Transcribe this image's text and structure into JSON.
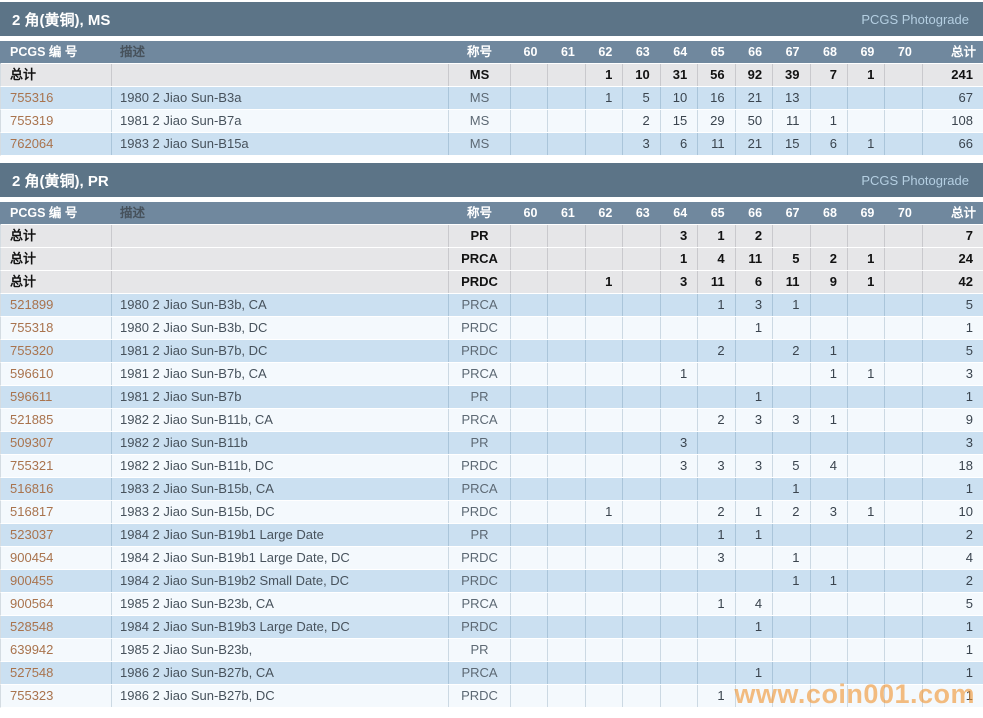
{
  "table_headers": {
    "pcgs_number": "PCGS 编 号",
    "description": "描述",
    "designation": "称号",
    "total": "总计"
  },
  "grade_columns": [
    "60",
    "61",
    "62",
    "63",
    "64",
    "65",
    "66",
    "67",
    "68",
    "69",
    "70"
  ],
  "total_row_label": "总计",
  "watermark": "www.coin001.com",
  "colors": {
    "section_band": "#5c7487",
    "table_header": "#70889e",
    "total_row": "#e6e6e8",
    "row_blue": "#cbe0f1",
    "row_light": "#f4f9fd",
    "pcgs_number_link": "#a9734d",
    "photograde_link": "#b5cfe2",
    "watermark": "#f2932d"
  },
  "sections": [
    {
      "title": "2 角(黄铜), MS",
      "link": "PCGS Photograde",
      "total_rows": [
        {
          "designation": "MS",
          "grades": {
            "62": "1",
            "63": "10",
            "64": "31",
            "65": "56",
            "66": "92",
            "67": "39",
            "68": "7",
            "69": "1"
          },
          "total": "241"
        }
      ],
      "rows": [
        {
          "pcgs_number": "755316",
          "description": "1980 2 Jiao Sun-B3a",
          "designation": "MS",
          "grades": {
            "62": "1",
            "63": "5",
            "64": "10",
            "65": "16",
            "66": "21",
            "67": "13"
          },
          "total": "67"
        },
        {
          "pcgs_number": "755319",
          "description": "1981 2 Jiao Sun-B7a",
          "designation": "MS",
          "grades": {
            "63": "2",
            "64": "15",
            "65": "29",
            "66": "50",
            "67": "11",
            "68": "1"
          },
          "total": "108"
        },
        {
          "pcgs_number": "762064",
          "description": "1983 2 Jiao Sun-B15a",
          "designation": "MS",
          "grades": {
            "63": "3",
            "64": "6",
            "65": "11",
            "66": "21",
            "67": "15",
            "68": "6",
            "69": "1"
          },
          "total": "66"
        }
      ]
    },
    {
      "title": "2 角(黄铜), PR",
      "link": "PCGS Photograde",
      "total_rows": [
        {
          "designation": "PR",
          "grades": {
            "64": "3",
            "65": "1",
            "66": "2"
          },
          "total": "7"
        },
        {
          "designation": "PRCA",
          "grades": {
            "64": "1",
            "65": "4",
            "66": "11",
            "67": "5",
            "68": "2",
            "69": "1"
          },
          "total": "24"
        },
        {
          "designation": "PRDC",
          "grades": {
            "62": "1",
            "64": "3",
            "65": "11",
            "66": "6",
            "67": "11",
            "68": "9",
            "69": "1"
          },
          "total": "42"
        }
      ],
      "rows": [
        {
          "pcgs_number": "521899",
          "description": "1980 2 Jiao Sun-B3b, CA",
          "designation": "PRCA",
          "grades": {
            "65": "1",
            "66": "3",
            "67": "1"
          },
          "total": "5"
        },
        {
          "pcgs_number": "755318",
          "description": "1980 2 Jiao Sun-B3b, DC",
          "designation": "PRDC",
          "grades": {
            "66": "1"
          },
          "total": "1"
        },
        {
          "pcgs_number": "755320",
          "description": "1981 2 Jiao Sun-B7b, DC",
          "designation": "PRDC",
          "grades": {
            "65": "2",
            "67": "2",
            "68": "1"
          },
          "total": "5"
        },
        {
          "pcgs_number": "596610",
          "description": "1981 2 Jiao Sun-B7b, CA",
          "designation": "PRCA",
          "grades": {
            "64": "1",
            "68": "1",
            "69": "1"
          },
          "total": "3"
        },
        {
          "pcgs_number": "596611",
          "description": "1981 2 Jiao Sun-B7b",
          "designation": "PR",
          "grades": {
            "66": "1"
          },
          "total": "1"
        },
        {
          "pcgs_number": "521885",
          "description": "1982 2 Jiao Sun-B11b, CA",
          "designation": "PRCA",
          "grades": {
            "65": "2",
            "66": "3",
            "67": "3",
            "68": "1"
          },
          "total": "9"
        },
        {
          "pcgs_number": "509307",
          "description": "1982 2 Jiao Sun-B11b",
          "designation": "PR",
          "grades": {
            "64": "3"
          },
          "total": "3"
        },
        {
          "pcgs_number": "755321",
          "description": "1982 2 Jiao Sun-B11b, DC",
          "designation": "PRDC",
          "grades": {
            "64": "3",
            "65": "3",
            "66": "3",
            "67": "5",
            "68": "4"
          },
          "total": "18"
        },
        {
          "pcgs_number": "516816",
          "description": "1983 2 Jiao Sun-B15b, CA",
          "designation": "PRCA",
          "grades": {
            "67": "1"
          },
          "total": "1"
        },
        {
          "pcgs_number": "516817",
          "description": "1983 2 Jiao Sun-B15b, DC",
          "designation": "PRDC",
          "grades": {
            "62": "1",
            "65": "2",
            "66": "1",
            "67": "2",
            "68": "3",
            "69": "1"
          },
          "total": "10"
        },
        {
          "pcgs_number": "523037",
          "description": "1984 2 Jiao Sun-B19b1 Large Date",
          "designation": "PR",
          "grades": {
            "65": "1",
            "66": "1"
          },
          "total": "2"
        },
        {
          "pcgs_number": "900454",
          "description": "1984 2 Jiao Sun-B19b1 Large Date, DC",
          "designation": "PRDC",
          "grades": {
            "65": "3",
            "67": "1"
          },
          "total": "4"
        },
        {
          "pcgs_number": "900455",
          "description": "1984 2 Jiao Sun-B19b2 Small Date, DC",
          "designation": "PRDC",
          "grades": {
            "67": "1",
            "68": "1"
          },
          "total": "2"
        },
        {
          "pcgs_number": "900564",
          "description": "1985 2 Jiao Sun-B23b, CA",
          "designation": "PRCA",
          "grades": {
            "65": "1",
            "66": "4"
          },
          "total": "5"
        },
        {
          "pcgs_number": "528548",
          "description": "1984 2 Jiao Sun-B19b3 Large Date, DC",
          "designation": "PRDC",
          "grades": {
            "66": "1"
          },
          "total": "1"
        },
        {
          "pcgs_number": "639942",
          "description": "1985 2 Jiao Sun-B23b,",
          "designation": "PR",
          "grades": {},
          "total": "1"
        },
        {
          "pcgs_number": "527548",
          "description": "1986 2 Jiao Sun-B27b, CA",
          "designation": "PRCA",
          "grades": {
            "66": "1"
          },
          "total": "1"
        },
        {
          "pcgs_number": "755323",
          "description": "1986 2 Jiao Sun-B27b, DC",
          "designation": "PRDC",
          "grades": {
            "65": "1"
          },
          "total": "1"
        }
      ]
    }
  ]
}
